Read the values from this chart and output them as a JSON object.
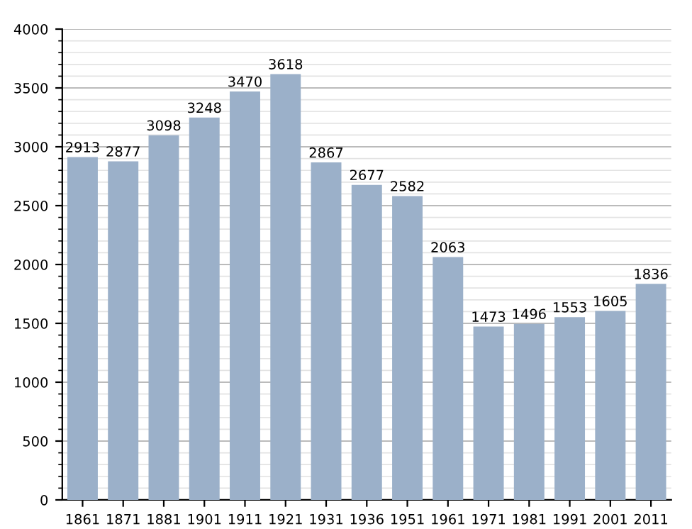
{
  "chart_data": {
    "type": "bar",
    "categories": [
      "1861",
      "1871",
      "1881",
      "1901",
      "1911",
      "1921",
      "1931",
      "1936",
      "1951",
      "1961",
      "1971",
      "1981",
      "1991",
      "2001",
      "2011"
    ],
    "values": [
      2913,
      2877,
      3098,
      3248,
      3470,
      3618,
      2867,
      2677,
      2582,
      2063,
      1473,
      1496,
      1553,
      1605,
      1836
    ],
    "color": "#9bb0c9",
    "ylim": [
      0,
      4000
    ],
    "yticks": [
      0,
      500,
      1000,
      1500,
      2000,
      2500,
      3000,
      3500,
      4000
    ],
    "grid": "y",
    "data_labels": true
  }
}
